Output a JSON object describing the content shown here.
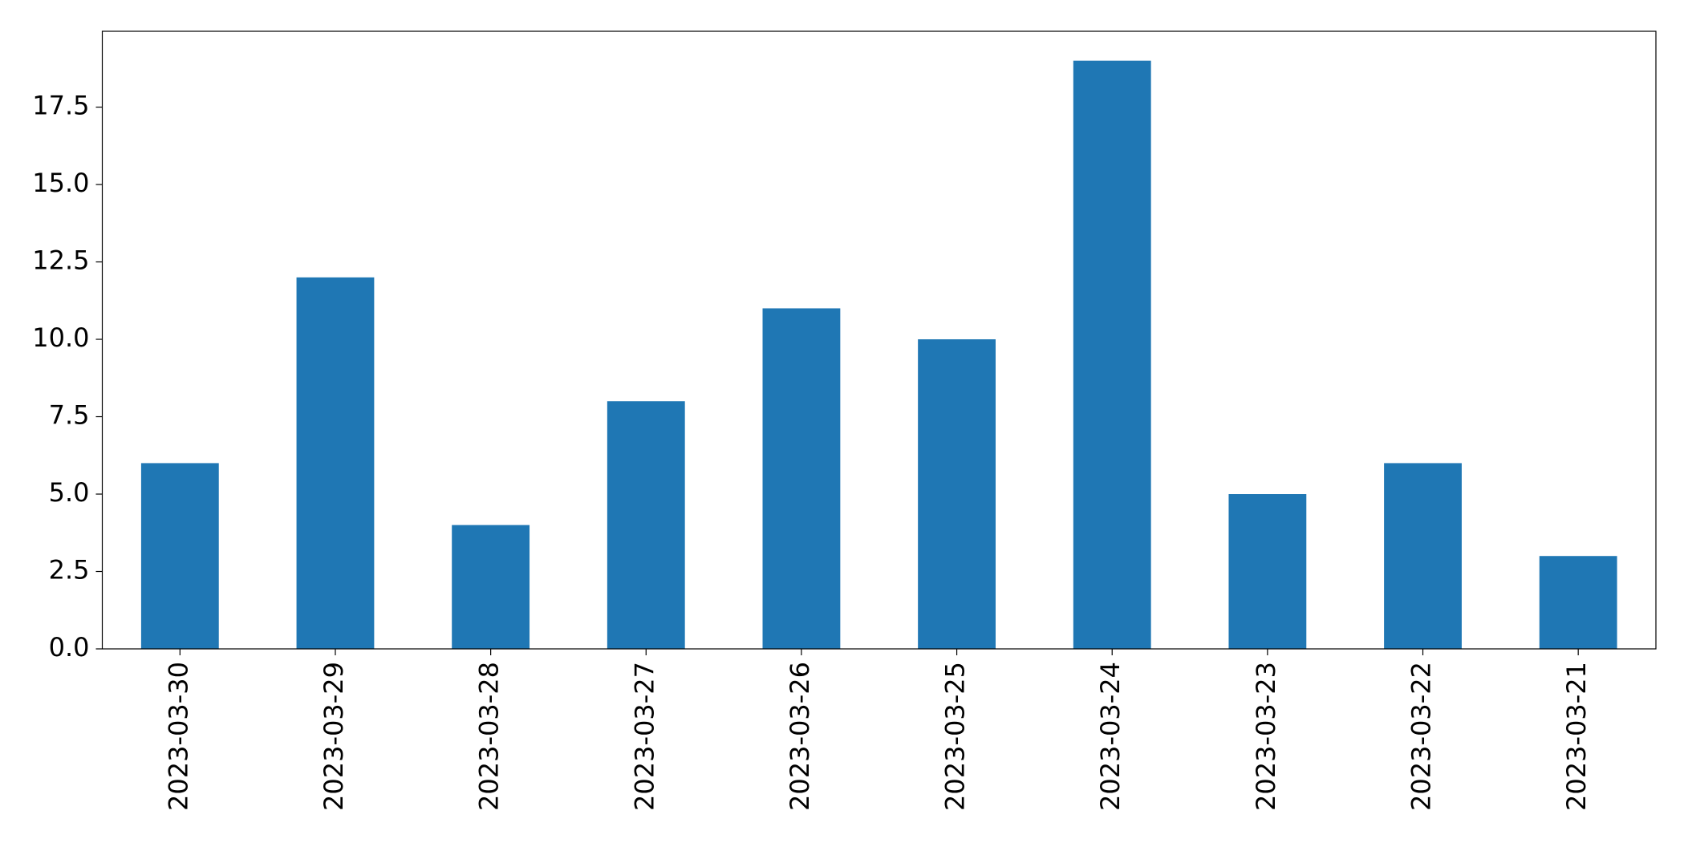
{
  "chart_data": {
    "type": "bar",
    "categories": [
      "2023-03-30",
      "2023-03-29",
      "2023-03-28",
      "2023-03-27",
      "2023-03-26",
      "2023-03-25",
      "2023-03-24",
      "2023-03-23",
      "2023-03-22",
      "2023-03-21"
    ],
    "values": [
      6,
      12,
      4,
      8,
      11,
      10,
      19,
      5,
      6,
      3
    ],
    "color": "#1f77b4",
    "ylim": [
      0,
      19.95
    ],
    "yticks": [
      {
        "value": 0,
        "label": "0.0"
      },
      2.5,
      {
        "value": 5,
        "label": "5.0"
      },
      7.5,
      {
        "value": 10,
        "label": "10.0"
      },
      12.5,
      {
        "value": 15,
        "label": "15.0"
      },
      17.5
    ],
    "grid": false
  }
}
